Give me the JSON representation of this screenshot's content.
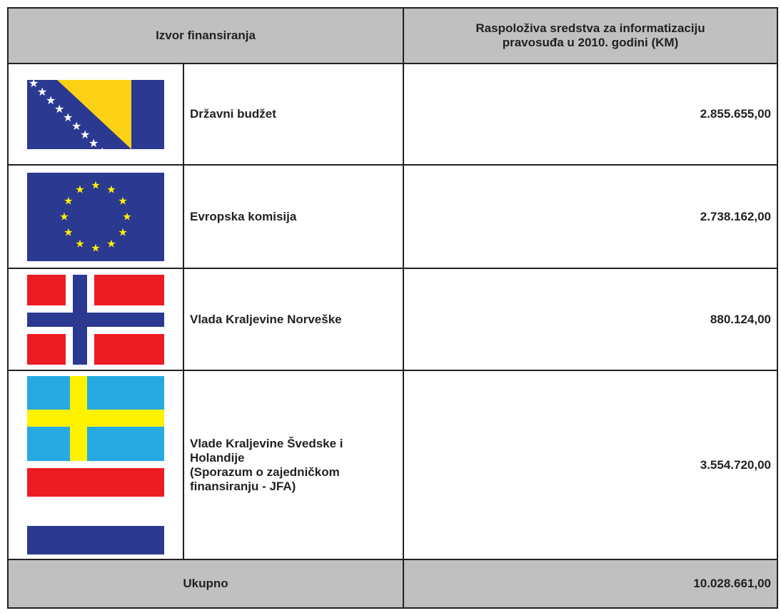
{
  "header": {
    "columns": [
      "Izvor finansiranja",
      "Raspoloživa sredstva za informatizaciju pravosuđa u 2010. godini (KM)"
    ]
  },
  "rows": [
    {
      "name": "Državni budžet",
      "amount": "2.855.655,00"
    },
    {
      "name": "Evropska komisija",
      "amount": "2.738.162,00"
    },
    {
      "name": "Vlada Kraljevine Norveške",
      "amount": "880.124,00"
    },
    {
      "name": "Vlade Kraljevine Švedske i Holandije\n(Sporazum o zajedničkom finansiranju - JFA)",
      "amount": "3.554.720,00"
    }
  ],
  "footer": {
    "label": "Ukupno",
    "total": "10.028.661,00"
  }
}
